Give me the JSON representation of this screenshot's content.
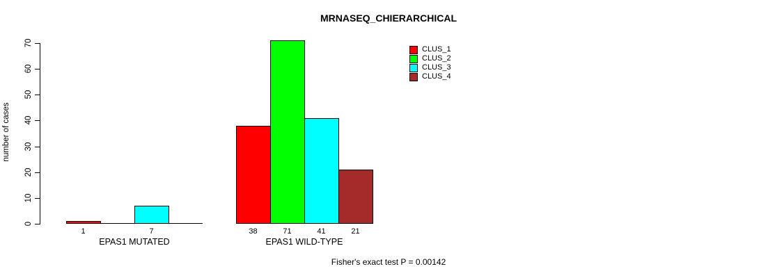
{
  "chart_data": {
    "type": "bar",
    "title": "MRNASEQ_CHIERARCHICAL",
    "ylabel": "number of cases",
    "xlabel": "",
    "ylim": [
      0,
      70
    ],
    "yticks": [
      0,
      10,
      20,
      30,
      40,
      50,
      60,
      70
    ],
    "grid": false,
    "legend_position": "top-right",
    "bar_border_color": "#000000",
    "categories": [
      "EPAS1 MUTATED",
      "EPAS1 WILD-TYPE"
    ],
    "series": [
      {
        "name": "CLUS_1",
        "color": "#FF0000",
        "values": [
          1,
          38
        ]
      },
      {
        "name": "CLUS_2",
        "color": "#00FF00",
        "values": [
          0,
          71
        ]
      },
      {
        "name": "CLUS_3",
        "color": "#00FFFF",
        "values": [
          7,
          41
        ]
      },
      {
        "name": "CLUS_4",
        "color": "#A52A2A",
        "values": [
          0,
          21
        ]
      }
    ],
    "visible_bar_value_labels": [
      "1",
      "7",
      "38",
      "71",
      "41",
      "21"
    ],
    "annotation": "Fisher's exact test P = 0.00142"
  }
}
